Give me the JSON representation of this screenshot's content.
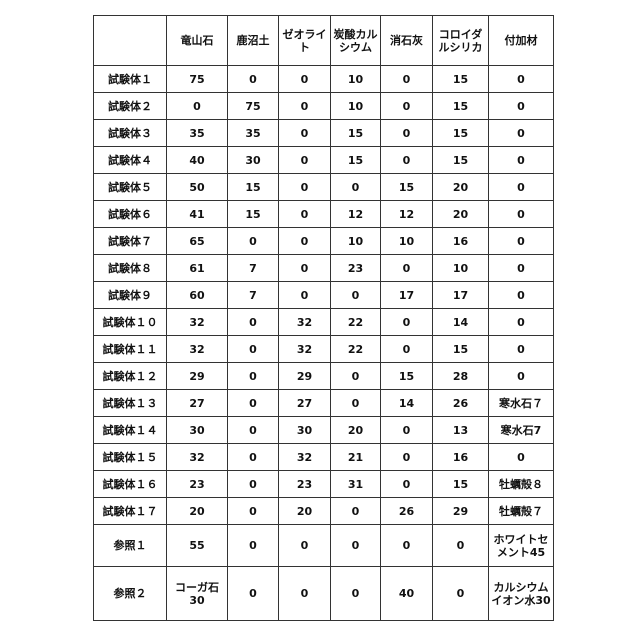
{
  "headers": [
    "",
    "竜山石",
    "鹿沼土",
    "ゼオライト",
    "炭酸カルシウム",
    "消石灰",
    "コロイダルシリカ",
    "付加材"
  ],
  "rows": [
    [
      "試験体１",
      "75",
      "0",
      "0",
      "10",
      "0",
      "15",
      "0"
    ],
    [
      "試験体２",
      "0",
      "75",
      "0",
      "10",
      "0",
      "15",
      "0"
    ],
    [
      "試験体３",
      "35",
      "35",
      "0",
      "15",
      "0",
      "15",
      "0"
    ],
    [
      "試験体４",
      "40",
      "30",
      "0",
      "15",
      "0",
      "15",
      "0"
    ],
    [
      "試験体５",
      "50",
      "15",
      "0",
      "0",
      "15",
      "20",
      "0"
    ],
    [
      "試験体６",
      "41",
      "15",
      "0",
      "12",
      "12",
      "20",
      "0"
    ],
    [
      "試験体７",
      "65",
      "0",
      "0",
      "10",
      "10",
      "16",
      "0"
    ],
    [
      "試験体８",
      "61",
      "7",
      "0",
      "23",
      "0",
      "10",
      "0"
    ],
    [
      "試験体９",
      "60",
      "7",
      "0",
      "0",
      "17",
      "17",
      "0"
    ],
    [
      "試験体１０",
      "32",
      "0",
      "32",
      "22",
      "0",
      "14",
      "0"
    ],
    [
      "試験体１１",
      "32",
      "0",
      "32",
      "22",
      "0",
      "15",
      "0"
    ],
    [
      "試験体１２",
      "29",
      "0",
      "29",
      "0",
      "15",
      "28",
      "0"
    ],
    [
      "試験体１３",
      "27",
      "0",
      "27",
      "0",
      "14",
      "26",
      "寒水石７"
    ],
    [
      "試験体１４",
      "30",
      "0",
      "30",
      "20",
      "0",
      "13",
      "寒水石7"
    ],
    [
      "試験体１５",
      "32",
      "0",
      "32",
      "21",
      "0",
      "16",
      "0"
    ],
    [
      "試験体１６",
      "23",
      "0",
      "23",
      "31",
      "0",
      "15",
      "牡蠣殻８"
    ],
    [
      "試験体１７",
      "20",
      "0",
      "20",
      "0",
      "26",
      "29",
      "牡蠣殻７"
    ],
    [
      "参照１",
      "55",
      "0",
      "0",
      "0",
      "0",
      "0",
      "ホワイトセメント45"
    ],
    [
      "参照２",
      "コーガ石30",
      "0",
      "0",
      "0",
      "40",
      "0",
      "カルシウムイオン水30"
    ]
  ]
}
